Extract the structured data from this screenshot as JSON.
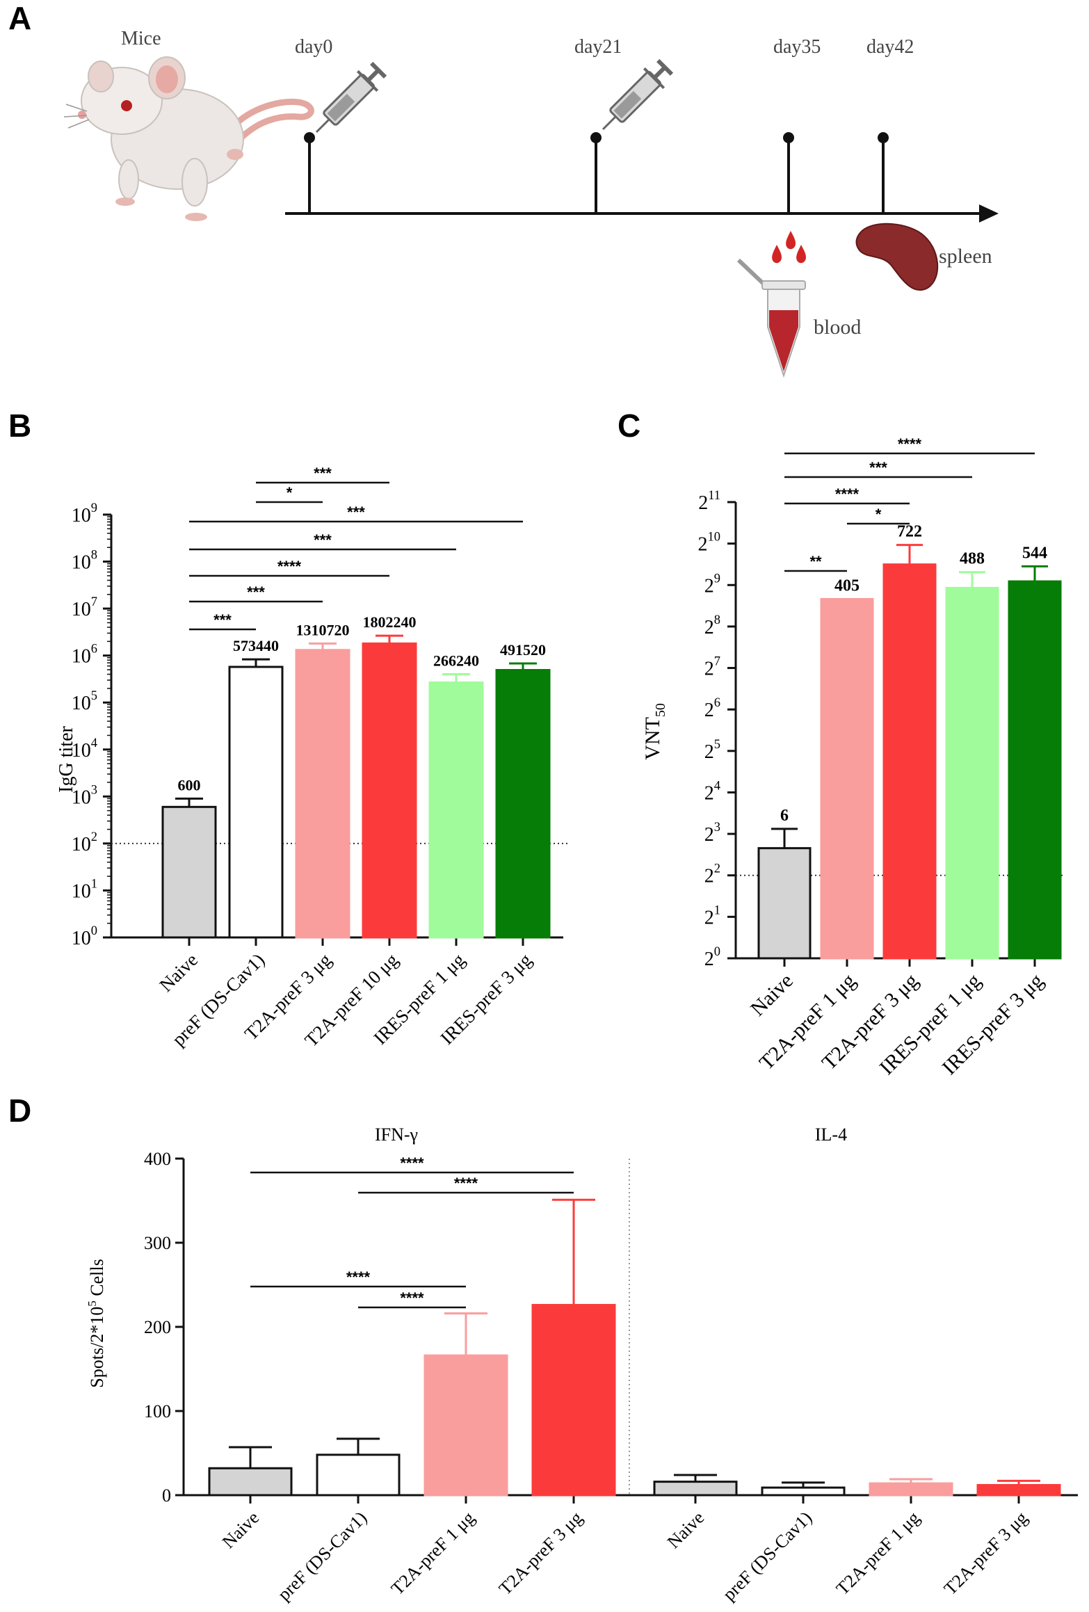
{
  "panels": {
    "a": "A",
    "b": "B",
    "c": "C",
    "d": "D"
  },
  "schedule": {
    "animal": "Mice",
    "days": [
      "day0",
      "day21",
      "day35",
      "day42"
    ],
    "blood": "blood",
    "spleen": "spleen"
  },
  "colors": {
    "naive": "#d4d4d4",
    "dscav1": "#ffffff",
    "t2a_low": "#fa9d9d",
    "t2a_high": "#fb3b3b",
    "ires_low": "#a0fb9a",
    "ires_high": "#067d06"
  },
  "chart_data": [
    {
      "panel": "B",
      "type": "bar",
      "scale": "log10",
      "ylabel": "IgG titer",
      "ylim": [
        1,
        1000000000
      ],
      "y_ticks": [
        {
          "base": "10",
          "exp": "0"
        },
        {
          "base": "10",
          "exp": "1"
        },
        {
          "base": "10",
          "exp": "2"
        },
        {
          "base": "10",
          "exp": "3"
        },
        {
          "base": "10",
          "exp": "4"
        },
        {
          "base": "10",
          "exp": "5"
        },
        {
          "base": "10",
          "exp": "6"
        },
        {
          "base": "10",
          "exp": "7"
        },
        {
          "base": "10",
          "exp": "8"
        },
        {
          "base": "10",
          "exp": "9"
        }
      ],
      "threshold": 100,
      "categories": [
        "Naive",
        "preF (DS-Cav1)",
        "T2A-preF 3 μg",
        "T2A-preF 10 μg",
        "IRES-preF 1 μg",
        "IRES-preF 3 μg"
      ],
      "values": [
        600,
        573440,
        1310720,
        1802240,
        266240,
        491520
      ],
      "errors_upper": [
        900,
        830000,
        1800000,
        2650000,
        400000,
        680000
      ],
      "value_labels": [
        "600",
        "573440",
        "1310720",
        "1802240",
        "266240",
        "491520"
      ],
      "colors": [
        "#d4d4d4",
        "#ffffff",
        "#fa9d9d",
        "#fb3b3b",
        "#a0fb9a",
        "#067d06"
      ],
      "significance": [
        {
          "from": 0,
          "to": 1,
          "label": "***"
        },
        {
          "from": 0,
          "to": 2,
          "label": "***"
        },
        {
          "from": 0,
          "to": 3,
          "label": "****"
        },
        {
          "from": 0,
          "to": 4,
          "label": "***"
        },
        {
          "from": 0,
          "to": 5,
          "label": "***"
        },
        {
          "from": 1,
          "to": 2,
          "label": "*"
        },
        {
          "from": 1,
          "to": 3,
          "label": "***"
        }
      ]
    },
    {
      "panel": "C",
      "type": "bar",
      "scale": "log2",
      "ylabel": "VNT",
      "ylabel_sub": "50",
      "ylim": [
        1,
        2048
      ],
      "y_ticks": [
        {
          "base": "2",
          "exp": "0"
        },
        {
          "base": "2",
          "exp": "1"
        },
        {
          "base": "2",
          "exp": "2"
        },
        {
          "base": "2",
          "exp": "3"
        },
        {
          "base": "2",
          "exp": "4"
        },
        {
          "base": "2",
          "exp": "5"
        },
        {
          "base": "2",
          "exp": "6"
        },
        {
          "base": "2",
          "exp": "7"
        },
        {
          "base": "2",
          "exp": "8"
        },
        {
          "base": "2",
          "exp": "9"
        },
        {
          "base": "2",
          "exp": "10"
        },
        {
          "base": "2",
          "exp": "11"
        }
      ],
      "threshold": 4,
      "categories": [
        "Naive",
        "T2A-preF 1 μg",
        "T2A-preF 3 μg",
        "IRES-preF 1 μg",
        "IRES-preF 3 μg"
      ],
      "values": [
        6.3,
        405,
        722,
        488,
        544
      ],
      "errors_upper": [
        8.7,
        405,
        1000,
        635,
        700
      ],
      "value_labels": [
        "6",
        "405",
        "722",
        "488",
        "544"
      ],
      "colors": [
        "#d4d4d4",
        "#fa9d9d",
        "#fb3b3b",
        "#a0fb9a",
        "#067d06"
      ],
      "significance": [
        {
          "from": 0,
          "to": 1,
          "label": "**"
        },
        {
          "from": 0,
          "to": 2,
          "label": "****"
        },
        {
          "from": 0,
          "to": 3,
          "label": "***"
        },
        {
          "from": 0,
          "to": 4,
          "label": "****"
        },
        {
          "from": 1,
          "to": 2,
          "label": "*"
        }
      ]
    },
    {
      "panel": "D",
      "type": "bar",
      "scale": "linear",
      "ylabel": "Spots/2*10",
      "ylabel_sup": "5",
      "ylabel_tail": " Cells",
      "ylim": [
        0,
        400
      ],
      "y_ticks": [
        "0",
        "100",
        "200",
        "300",
        "400"
      ],
      "groups": [
        "IFN-γ",
        "IL-4"
      ],
      "categories": [
        "Naive",
        "preF (DS-Cav1)",
        "T2A-preF 1 μg",
        "T2A-preF 3 μg",
        "Naive",
        "preF (DS-Cav1)",
        "T2A-preF 1 μg",
        "T2A-preF 3 μg"
      ],
      "values": [
        32,
        48,
        166,
        226,
        16,
        9,
        14,
        12
      ],
      "errors_upper": [
        57,
        67,
        216,
        351,
        24,
        15,
        19,
        17
      ],
      "colors": [
        "#d4d4d4",
        "#ffffff",
        "#fa9d9d",
        "#fb3b3b",
        "#d4d4d4",
        "#ffffff",
        "#fa9d9d",
        "#fb3b3b"
      ],
      "significance": [
        {
          "from": 0,
          "to": 2,
          "label": "****"
        },
        {
          "from": 1,
          "to": 2,
          "label": "****"
        },
        {
          "from": 0,
          "to": 3,
          "label": "****"
        },
        {
          "from": 1,
          "to": 3,
          "label": "****"
        }
      ]
    }
  ]
}
